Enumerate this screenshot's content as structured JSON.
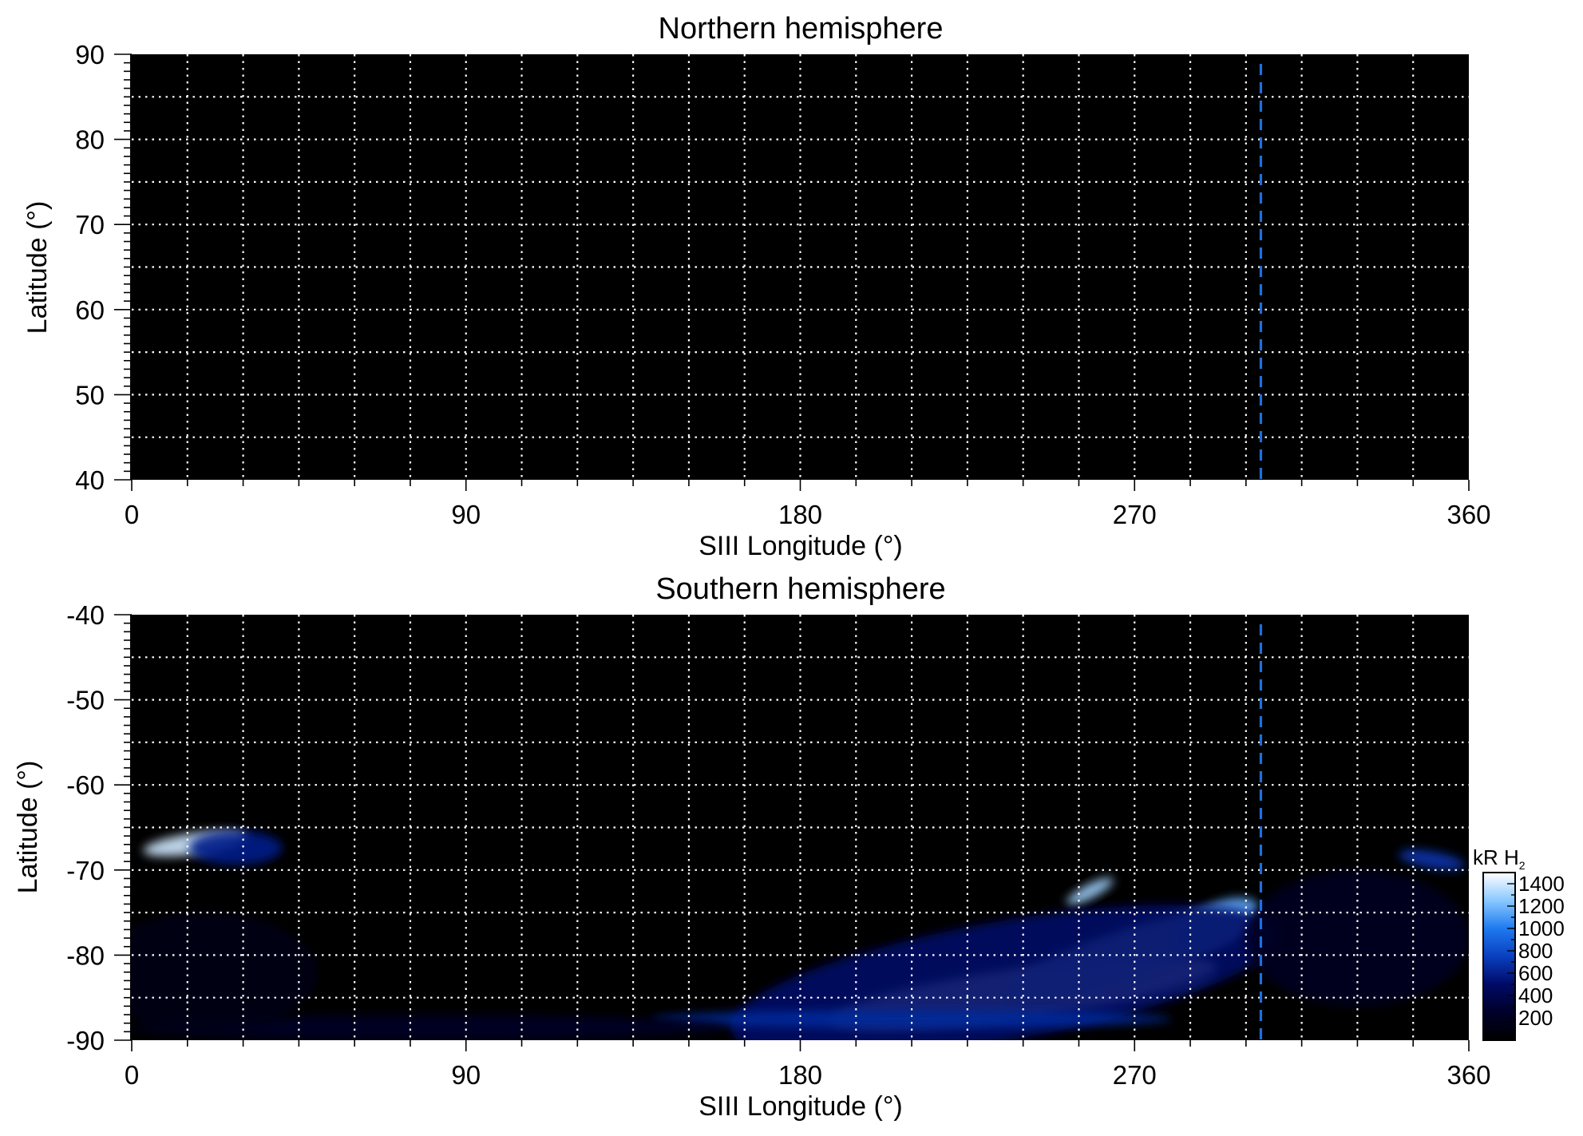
{
  "chart_data": [
    {
      "type": "heatmap",
      "title": "Northern hemisphere",
      "xlabel": "SIII Longitude (°)",
      "ylabel": "Latitude (°)",
      "xlim": [
        0,
        360
      ],
      "ylim": [
        40,
        90
      ],
      "xticks": [
        0,
        90,
        180,
        270,
        360
      ],
      "yticks": [
        40,
        50,
        60,
        70,
        80,
        90
      ],
      "grid": true,
      "grid_x_spacing": 15,
      "grid_y_spacing": 5,
      "background_color": "#000000",
      "grid_color": "#ffffff",
      "marker_line": {
        "x": 304,
        "style": "dashed",
        "color": "#1e6fe0"
      },
      "emission_regions": []
    },
    {
      "type": "heatmap",
      "title": "Southern hemisphere",
      "xlabel": "SIII Longitude (°)",
      "ylabel": "Latitude (°)",
      "xlim": [
        0,
        360
      ],
      "ylim": [
        -90,
        -40
      ],
      "xticks": [
        0,
        90,
        180,
        270,
        360
      ],
      "yticks": [
        -40,
        -50,
        -60,
        -70,
        -80,
        -90
      ],
      "grid": true,
      "grid_x_spacing": 15,
      "grid_y_spacing": 5,
      "background_color": "#000000",
      "grid_color": "#ffffff",
      "marker_line": {
        "x": 304,
        "style": "dashed",
        "color": "#1e6fe0"
      },
      "emission_regions": [
        {
          "lon": 17,
          "lat": -66.9,
          "lon_width": 28,
          "lat_width": 2.5,
          "angle": 8,
          "intensity": 1400
        },
        {
          "lon": 28,
          "lat": -67.4,
          "lon_width": 25,
          "lat_width": 4,
          "angle": 0,
          "intensity": 600
        },
        {
          "lon": 258,
          "lat": -72.5,
          "lon_width": 14,
          "lat_width": 1.6,
          "angle": 28,
          "intensity": 1300
        },
        {
          "lon": 240,
          "lat": -84.5,
          "lon_width": 105,
          "lat_width": 6,
          "angle": 8,
          "intensity": 1450
        },
        {
          "lon": 268,
          "lat": -80,
          "lon_width": 70,
          "lat_width": 6,
          "angle": 18,
          "intensity": 1250
        },
        {
          "lon": 292,
          "lat": -76.5,
          "lon_width": 25,
          "lat_width": 5,
          "angle": 25,
          "intensity": 1150
        },
        {
          "lon": 235,
          "lat": -83,
          "lon_width": 150,
          "lat_width": 14,
          "angle": 10,
          "intensity": 500
        },
        {
          "lon": 210,
          "lat": -87.5,
          "lon_width": 140,
          "lat_width": 2,
          "angle": 0,
          "intensity": 650
        },
        {
          "lon": 80,
          "lat": -88.5,
          "lon_width": 160,
          "lat_width": 3,
          "angle": 0,
          "intensity": 220
        },
        {
          "lon": 20,
          "lat": -82,
          "lon_width": 60,
          "lat_width": 14,
          "angle": 0,
          "intensity": 130
        },
        {
          "lon": 350,
          "lat": -68.8,
          "lon_width": 18,
          "lat_width": 2,
          "angle": -10,
          "intensity": 700
        },
        {
          "lon": 330,
          "lat": -78,
          "lon_width": 60,
          "lat_width": 16,
          "angle": 0,
          "intensity": 200
        }
      ]
    }
  ],
  "colorbar": {
    "label": "kR H",
    "label_subscript": "2",
    "ticks": [
      1400,
      1200,
      1000,
      800,
      600,
      400,
      200
    ],
    "range": [
      0,
      1500
    ],
    "colors": [
      "#000000",
      "#00002a",
      "#000a66",
      "#0a3fbf",
      "#1e7af0",
      "#8ac8ff",
      "#ffffff"
    ]
  }
}
